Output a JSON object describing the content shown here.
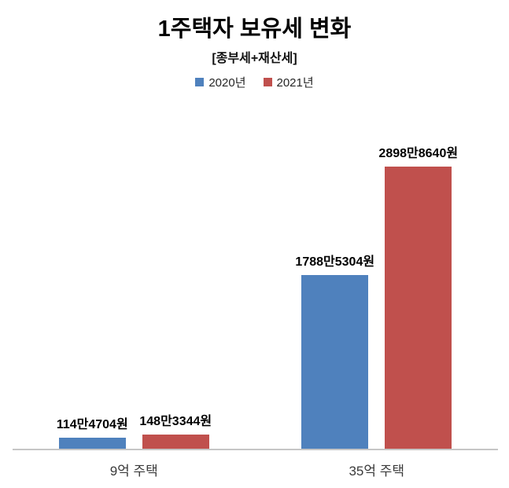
{
  "chart_data": {
    "type": "bar",
    "title": "1주택자 보유세 변화",
    "subtitle": "[종부세+재산세]",
    "categories": [
      "9억 주택",
      "35억 주택"
    ],
    "series": [
      {
        "name": "2020년",
        "color": "#4F81BD",
        "values": [
          1144704,
          17885304
        ],
        "labels": [
          "114만4704원",
          "1788만5304원"
        ]
      },
      {
        "name": "2021년",
        "color": "#C0504D",
        "values": [
          1483344,
          28988640
        ],
        "labels": [
          "148만3344원",
          "2898만8640원"
        ]
      }
    ],
    "unit": "원",
    "ylim": [
      0,
      35000000
    ],
    "grid": false,
    "legend_position": "top",
    "axis_color": "#C6C6C6",
    "background": "#FFFFFF"
  }
}
